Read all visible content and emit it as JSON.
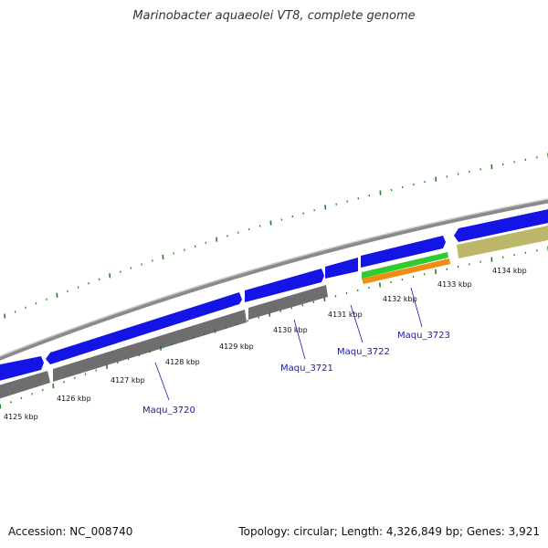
{
  "title": "Marinobacter aquaeolei VT8, complete genome",
  "footer": {
    "accession": "Accession: NC_008740",
    "topology": "Topology: circular; Length: 4,326,849 bp; Genes: 3,921"
  },
  "colors": {
    "backbone": "#8a8a8a",
    "forward_gene": "#1414e6",
    "reverse_gene": "#6e6e6e",
    "rna_green": "#2ecc2e",
    "rna_orange": "#f08c14",
    "khaki": "#bdb76b",
    "tick": "#2a7a2a",
    "gene_label": "#1a1aa6"
  },
  "kbp_labels": [
    "4125 kbp",
    "4126 kbp",
    "4127 kbp",
    "4128 kbp",
    "4129 kbp",
    "4130 kbp",
    "4131 kbp",
    "4132 kbp",
    "4133 kbp",
    "4134 kbp"
  ],
  "gene_labels": [
    "Maqu_3720",
    "Maqu_3721",
    "Maqu_3722",
    "Maqu_3723"
  ]
}
